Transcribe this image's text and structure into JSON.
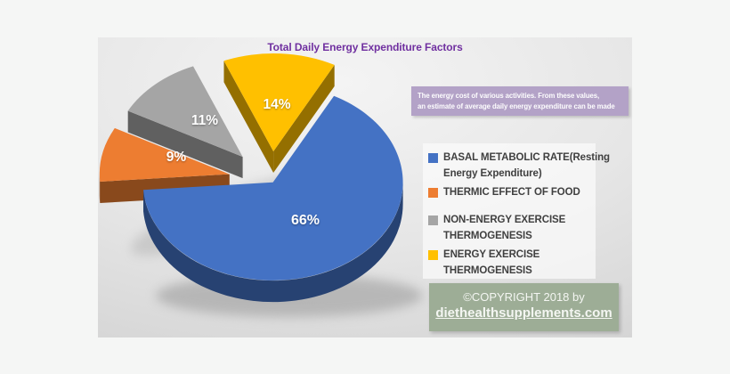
{
  "page": {
    "background_color": "#f5f6f5"
  },
  "slide": {
    "title": "Total Daily Energy Expenditure Factors",
    "title_color": "#7030a0",
    "annotation": {
      "line1": "The energy cost of various activities. From these values,",
      "line2": "an estimate of average daily energy expenditure can be made",
      "background_color": "#b3a2c7"
    },
    "legend": {
      "text_color": "#404040",
      "items": [
        {
          "lines": [
            "BASAL METABOLIC RATE(Resting",
            "Energy Expenditure)"
          ]
        },
        {
          "lines": [
            "THERMIC EFFECT OF FOOD"
          ]
        },
        {
          "lines": [
            "NON-ENERGY EXERCISE",
            "THERMOGENESIS"
          ]
        },
        {
          "lines": [
            "ENERGY EXERCISE",
            "THERMOGENESIS"
          ]
        }
      ]
    },
    "copyright": {
      "line1": "©COPYRIGHT 2018 by",
      "line2": "diethealthsupplements.com",
      "background_color": "#9dad96"
    }
  },
  "chart_data": {
    "type": "pie",
    "style": "3d-exploded",
    "title": "Total Daily Energy Expenditure Factors",
    "categories": [
      "BASAL METABOLIC RATE(Resting Energy Expenditure)",
      "THERMIC EFFECT OF FOOD",
      "NON-ENERGY EXERCISE THERMOGENESIS",
      "ENERGY EXERCISE THERMOGENESIS"
    ],
    "values": [
      66,
      9,
      11,
      14
    ],
    "data_labels": [
      "66%",
      "9%",
      "11%",
      "14%"
    ],
    "colors": [
      "#4472c4",
      "#ed7d31",
      "#a5a5a5",
      "#ffc000"
    ],
    "legend_position": "right",
    "start_angle_deg": 28
  }
}
